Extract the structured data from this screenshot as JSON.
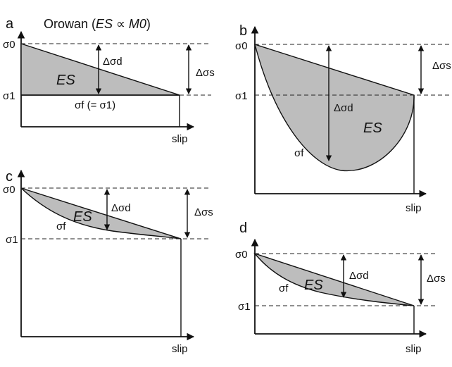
{
  "symbols": {
    "sigma0": "σ0",
    "sigma1": "σ1",
    "delta_sigma_d": "Δσd",
    "delta_sigma_s": "Δσs",
    "sigma_f": "σf",
    "energy": "ES",
    "slip": "slip"
  },
  "panel_a": {
    "letter": "a",
    "title_prefix": "Orowan (",
    "title_formula": "ES ∝ M0",
    "title_suffix": ")",
    "sigma_f_note": "σf (= σ1)"
  },
  "panel_b": {
    "letter": "b",
    "delta_sigma_s_cropped": "Δσs"
  },
  "panel_c": {
    "letter": "c"
  },
  "panel_d": {
    "letter": "d"
  }
}
